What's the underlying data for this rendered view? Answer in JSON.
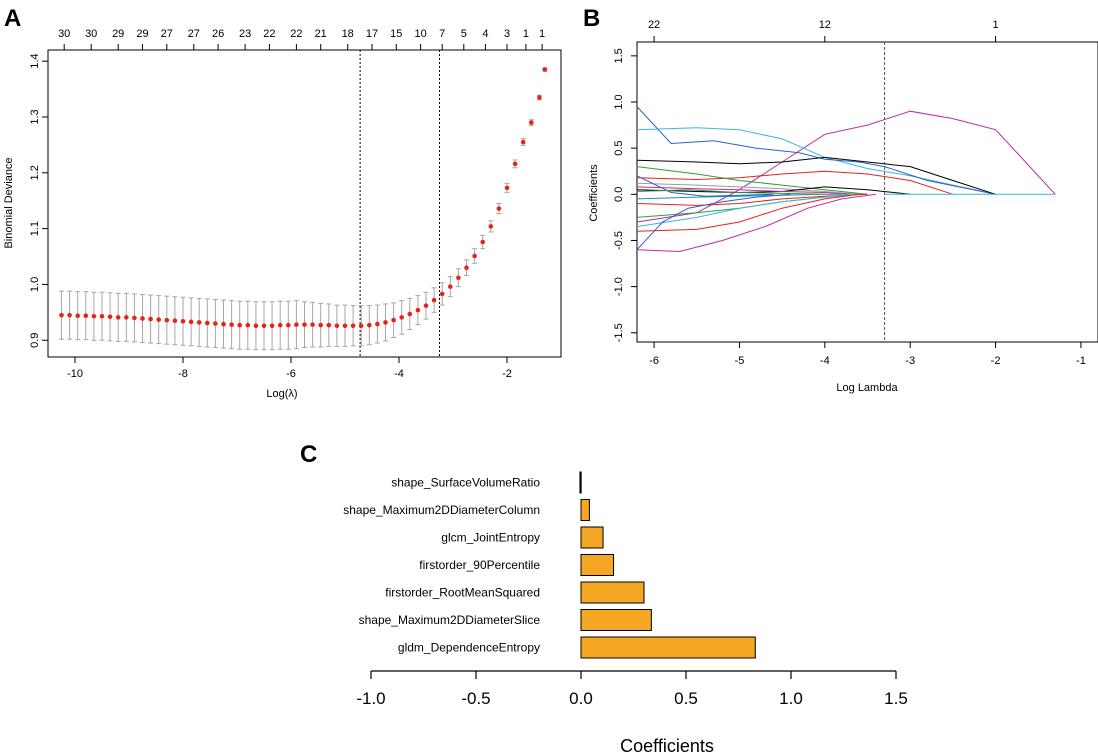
{
  "figure_labels": {
    "a": "A",
    "b": "B",
    "c": "C"
  },
  "colors": {
    "point": "#e3241c",
    "errorbar": "#a6a6a6",
    "bar_fill": "#f5a623",
    "bar_stroke": "#000000",
    "paths": [
      "#000000",
      "#e3241c",
      "#2e9e3e",
      "#2f5fd0",
      "#39b9d6",
      "#c02aa0",
      "#9c9c9c",
      "#1b8fb3"
    ]
  },
  "chart_data": [
    {
      "id": "A",
      "type": "scatter",
      "title": "",
      "xlabel": "Log(λ)",
      "ylabel": "Binomial Deviance",
      "xlim": [
        -10.5,
        -1.0
      ],
      "ylim": [
        0.87,
        1.42
      ],
      "xticks": [
        -10,
        -8,
        -6,
        -4,
        -2
      ],
      "yticks": [
        0.9,
        1.0,
        1.1,
        1.2,
        1.3,
        1.4
      ],
      "top_ticks": [
        {
          "x": -10.2,
          "label": "30"
        },
        {
          "x": -9.7,
          "label": "30"
        },
        {
          "x": -9.2,
          "label": "29"
        },
        {
          "x": -8.75,
          "label": "29"
        },
        {
          "x": -8.3,
          "label": "27"
        },
        {
          "x": -7.8,
          "label": "27"
        },
        {
          "x": -7.35,
          "label": "26"
        },
        {
          "x": -6.85,
          "label": "23"
        },
        {
          "x": -6.4,
          "label": "22"
        },
        {
          "x": -5.9,
          "label": "22"
        },
        {
          "x": -5.45,
          "label": "21"
        },
        {
          "x": -4.95,
          "label": "18"
        },
        {
          "x": -4.5,
          "label": "17"
        },
        {
          "x": -4.05,
          "label": "15"
        },
        {
          "x": -3.6,
          "label": "10"
        },
        {
          "x": -3.2,
          "label": "7"
        },
        {
          "x": -2.8,
          "label": "5"
        },
        {
          "x": -2.4,
          "label": "4"
        },
        {
          "x": -2.0,
          "label": "3"
        },
        {
          "x": -1.65,
          "label": "1"
        },
        {
          "x": -1.35,
          "label": "1"
        }
      ],
      "vlines": [
        -4.72,
        -3.25
      ],
      "series": [
        {
          "name": "cv_mean",
          "x": [
            -10.25,
            -10.1,
            -9.95,
            -9.8,
            -9.65,
            -9.5,
            -9.35,
            -9.2,
            -9.05,
            -8.9,
            -8.75,
            -8.6,
            -8.45,
            -8.3,
            -8.15,
            -8.0,
            -7.85,
            -7.7,
            -7.55,
            -7.4,
            -7.25,
            -7.1,
            -6.95,
            -6.8,
            -6.65,
            -6.5,
            -6.35,
            -6.2,
            -6.05,
            -5.9,
            -5.75,
            -5.6,
            -5.45,
            -5.3,
            -5.15,
            -5.0,
            -4.85,
            -4.7,
            -4.55,
            -4.4,
            -4.25,
            -4.1,
            -3.95,
            -3.8,
            -3.65,
            -3.5,
            -3.35,
            -3.2,
            -3.05,
            -2.9,
            -2.75,
            -2.6,
            -2.45,
            -2.3,
            -2.15,
            -2.0,
            -1.85,
            -1.7,
            -1.55,
            -1.4,
            -1.3
          ],
          "y": [
            0.945,
            0.945,
            0.944,
            0.944,
            0.943,
            0.943,
            0.942,
            0.941,
            0.941,
            0.94,
            0.939,
            0.938,
            0.937,
            0.936,
            0.935,
            0.934,
            0.933,
            0.932,
            0.931,
            0.93,
            0.929,
            0.928,
            0.927,
            0.927,
            0.926,
            0.926,
            0.926,
            0.927,
            0.927,
            0.928,
            0.928,
            0.928,
            0.927,
            0.927,
            0.926,
            0.926,
            0.926,
            0.926,
            0.927,
            0.929,
            0.932,
            0.936,
            0.941,
            0.947,
            0.954,
            0.962,
            0.972,
            0.983,
            0.996,
            1.012,
            1.03,
            1.051,
            1.076,
            1.104,
            1.136,
            1.173,
            1.216,
            1.255,
            1.29,
            1.335,
            1.385
          ],
          "se": [
            0.043,
            0.043,
            0.043,
            0.043,
            0.043,
            0.043,
            0.043,
            0.043,
            0.043,
            0.043,
            0.043,
            0.043,
            0.043,
            0.043,
            0.043,
            0.043,
            0.043,
            0.043,
            0.043,
            0.043,
            0.043,
            0.043,
            0.043,
            0.043,
            0.043,
            0.043,
            0.043,
            0.043,
            0.043,
            0.043,
            0.041,
            0.04,
            0.039,
            0.038,
            0.037,
            0.037,
            0.036,
            0.036,
            0.035,
            0.034,
            0.033,
            0.031,
            0.03,
            0.028,
            0.026,
            0.024,
            0.022,
            0.02,
            0.018,
            0.016,
            0.014,
            0.013,
            0.012,
            0.01,
            0.009,
            0.008,
            0.007,
            0.006,
            0.005,
            0.004,
            0.003
          ]
        }
      ]
    },
    {
      "id": "B",
      "type": "line",
      "title": "",
      "xlabel": "Log Lambda",
      "ylabel": "Coefficients",
      "xlim": [
        -6.2,
        -0.8
      ],
      "ylim": [
        -1.6,
        1.65
      ],
      "xticks": [
        -6,
        -5,
        -4,
        -3,
        -2,
        -1
      ],
      "yticks": [
        -1.5,
        -1.0,
        -0.5,
        0.0,
        0.5,
        1.0,
        1.5
      ],
      "top_ticks": [
        {
          "x": -6.0,
          "label": "22"
        },
        {
          "x": -4.0,
          "label": "12"
        },
        {
          "x": -2.0,
          "label": "1"
        }
      ],
      "vline": -3.3,
      "series": [
        {
          "name": "p1",
          "color": "#c02aa0",
          "x": [
            -6.2,
            -5.5,
            -5.0,
            -4.5,
            -4.0,
            -3.5,
            -3.0,
            -2.5,
            -2.0,
            -1.3
          ],
          "y": [
            -0.3,
            -0.2,
            0.05,
            0.35,
            0.65,
            0.75,
            0.9,
            0.82,
            0.7,
            0.0
          ]
        },
        {
          "name": "p2",
          "color": "#39b9d6",
          "x": [
            -6.2,
            -5.5,
            -5.0,
            -4.5,
            -4.0,
            -3.5,
            -3.0,
            -2.5,
            -2.0
          ],
          "y": [
            0.7,
            0.72,
            0.7,
            0.6,
            0.4,
            0.28,
            0.2,
            0.1,
            0.0
          ]
        },
        {
          "name": "p3",
          "color": "#2f5fd0",
          "x": [
            -6.2,
            -5.8,
            -5.3,
            -4.8,
            -4.3,
            -4.0,
            -3.6,
            -3.3,
            -2.8,
            -2.0
          ],
          "y": [
            0.95,
            0.55,
            0.58,
            0.5,
            0.45,
            0.38,
            0.35,
            0.3,
            0.15,
            0.0
          ]
        },
        {
          "name": "p4",
          "color": "#000000",
          "x": [
            -6.2,
            -5.5,
            -5.0,
            -4.5,
            -4.0,
            -3.5,
            -3.0,
            -2.5,
            -2.0
          ],
          "y": [
            0.37,
            0.35,
            0.33,
            0.35,
            0.4,
            0.35,
            0.3,
            0.15,
            0.0
          ]
        },
        {
          "name": "p5",
          "color": "#e3241c",
          "x": [
            -6.2,
            -5.5,
            -5.0,
            -4.5,
            -4.0,
            -3.5,
            -3.0,
            -2.5
          ],
          "y": [
            0.18,
            0.16,
            0.18,
            0.22,
            0.25,
            0.22,
            0.15,
            0.0
          ]
        },
        {
          "name": "p6",
          "color": "#2e9e3e",
          "x": [
            -6.2,
            -5.5,
            -5.0,
            -4.5,
            -4.0,
            -3.5
          ],
          "y": [
            0.3,
            0.22,
            0.15,
            0.1,
            0.05,
            0.0
          ]
        },
        {
          "name": "p7",
          "color": "#9c9c9c",
          "x": [
            -6.2,
            -5.5,
            -5.0,
            -4.5,
            -4.0,
            -3.6
          ],
          "y": [
            0.12,
            0.1,
            0.08,
            0.06,
            0.03,
            0.0
          ]
        },
        {
          "name": "p8",
          "color": "#000000",
          "x": [
            -6.2,
            -5.5,
            -5.0,
            -4.5,
            -4.0,
            -3.5,
            -3.0
          ],
          "y": [
            0.05,
            0.03,
            0.02,
            0.03,
            0.08,
            0.05,
            0.0
          ]
        },
        {
          "name": "p9",
          "color": "#c02aa0",
          "x": [
            -6.2,
            -5.5,
            -5.0,
            -4.5,
            -4.0,
            -3.7
          ],
          "y": [
            0.08,
            0.06,
            0.05,
            0.03,
            0.02,
            0.0
          ]
        },
        {
          "name": "p10",
          "color": "#1b8fb3",
          "x": [
            -6.2,
            -5.5,
            -5.0,
            -4.5,
            -4.0,
            -3.8
          ],
          "y": [
            -0.05,
            -0.03,
            -0.02,
            -0.01,
            0.0,
            0.0
          ]
        },
        {
          "name": "p11",
          "color": "#e3241c",
          "x": [
            -6.2,
            -5.5,
            -5.0,
            -4.5,
            -4.0,
            -3.5
          ],
          "y": [
            -0.1,
            -0.12,
            -0.1,
            -0.05,
            -0.02,
            0.0
          ]
        },
        {
          "name": "p12",
          "color": "#2e9e3e",
          "x": [
            -6.2,
            -5.5,
            -5.0,
            -4.5,
            -4.0,
            -3.6
          ],
          "y": [
            -0.25,
            -0.2,
            -0.15,
            -0.08,
            -0.03,
            0.0
          ]
        },
        {
          "name": "p13",
          "color": "#39b9d6",
          "x": [
            -6.2,
            -5.5,
            -5.0,
            -4.5,
            -4.0,
            -3.7
          ],
          "y": [
            -0.35,
            -0.25,
            -0.15,
            -0.08,
            -0.03,
            0.0
          ]
        },
        {
          "name": "p14",
          "color": "#e3241c",
          "x": [
            -6.2,
            -5.5,
            -5.0,
            -4.5,
            -4.0,
            -3.6
          ],
          "y": [
            -0.4,
            -0.38,
            -0.3,
            -0.15,
            -0.05,
            0.0
          ]
        },
        {
          "name": "p15",
          "color": "#c02aa0",
          "x": [
            -6.2,
            -5.7,
            -5.2,
            -4.7,
            -4.2,
            -3.8,
            -3.4
          ],
          "y": [
            -0.6,
            -0.62,
            -0.5,
            -0.35,
            -0.15,
            -0.05,
            0.0
          ]
        },
        {
          "name": "p16",
          "color": "#2f5fd0",
          "x": [
            -6.2,
            -5.9,
            -5.6,
            -5.2,
            -4.8,
            -4.4
          ],
          "y": [
            -0.6,
            -0.3,
            -0.15,
            -0.08,
            -0.03,
            0.0
          ]
        },
        {
          "name": "p17",
          "color": "#2f5fd0",
          "x": [
            -6.2,
            -5.8,
            -5.4,
            -5.0,
            -4.6
          ],
          "y": [
            0.2,
            0.02,
            -0.02,
            -0.01,
            0.0
          ]
        },
        {
          "name": "p18",
          "color": "#2e9e3e",
          "x": [
            -6.2,
            -5.6,
            -5.0,
            -4.5,
            -4.0
          ],
          "y": [
            0.03,
            0.05,
            0.02,
            0.01,
            0.0
          ]
        }
      ]
    },
    {
      "id": "C",
      "type": "bar",
      "orientation": "horizontal",
      "title": "",
      "xlabel": "Coefficients",
      "ylabel": "",
      "xlim": [
        -1.0,
        1.5
      ],
      "xticks": [
        -1.0,
        -0.5,
        0.0,
        0.5,
        1.0,
        1.5
      ],
      "tick_labels": [
        "-1.0",
        "-0.5",
        "0.0",
        "0.5",
        "1.0",
        "1.5"
      ],
      "categories": [
        "shape_SurfaceVolumeRatio",
        "shape_Maximum2DDiameterColumn",
        "glcm_JointEntropy",
        "firstorder_90Percentile",
        "firstorder_RootMeanSquared",
        "shape_Maximum2DDiameterSlice",
        "gldm_DependenceEntropy"
      ],
      "values": [
        -0.005,
        0.04,
        0.105,
        0.155,
        0.3,
        0.335,
        0.83
      ]
    }
  ]
}
